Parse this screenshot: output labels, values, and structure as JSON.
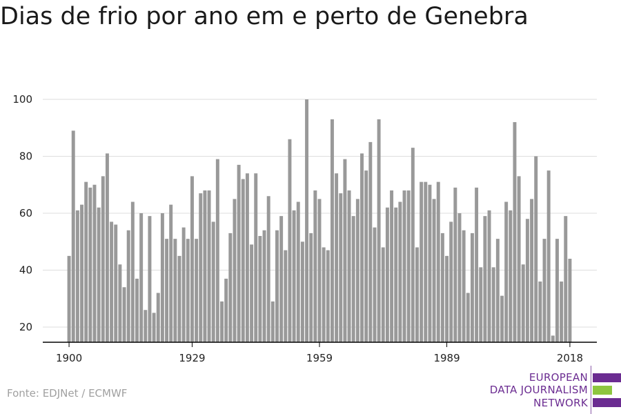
{
  "title": "Dias de frio por ano em e perto de Genebra",
  "source": "Fonte: EDJNet / ECMWF",
  "logo": {
    "line1": "EUROPEAN",
    "line2": "DATA JOURNALISM",
    "line3": "NETWORK"
  },
  "colors": {
    "bar": "#999999",
    "grid": "#dddddd",
    "axis": "#000000",
    "brand_purple": "#6b2c91",
    "brand_green": "#8dc63f"
  },
  "chart_data": {
    "type": "bar",
    "title": "Dias de frio por ano em e perto de Genebra",
    "xlabel": "",
    "ylabel": "",
    "x_start": 1900,
    "x_end": 2018,
    "xticks": [
      1900,
      1929,
      1959,
      1989,
      2018
    ],
    "yticks": [
      20,
      40,
      60,
      80,
      100
    ],
    "ylim": [
      15,
      100
    ],
    "grid": true,
    "categories": [
      1900,
      1901,
      1902,
      1903,
      1904,
      1905,
      1906,
      1907,
      1908,
      1909,
      1910,
      1911,
      1912,
      1913,
      1914,
      1915,
      1916,
      1917,
      1918,
      1919,
      1920,
      1921,
      1922,
      1923,
      1924,
      1925,
      1926,
      1927,
      1928,
      1929,
      1930,
      1931,
      1932,
      1933,
      1934,
      1935,
      1936,
      1937,
      1938,
      1939,
      1940,
      1941,
      1942,
      1943,
      1944,
      1945,
      1946,
      1947,
      1948,
      1949,
      1950,
      1951,
      1952,
      1953,
      1954,
      1955,
      1956,
      1957,
      1958,
      1959,
      1960,
      1961,
      1962,
      1963,
      1964,
      1965,
      1966,
      1967,
      1968,
      1969,
      1970,
      1971,
      1972,
      1973,
      1974,
      1975,
      1976,
      1977,
      1978,
      1979,
      1980,
      1981,
      1982,
      1983,
      1984,
      1985,
      1986,
      1987,
      1988,
      1989,
      1990,
      1991,
      1992,
      1993,
      1994,
      1995,
      1996,
      1997,
      1998,
      1999,
      2000,
      2001,
      2002,
      2003,
      2004,
      2005,
      2006,
      2007,
      2008,
      2009,
      2010,
      2011,
      2012,
      2013,
      2014,
      2015,
      2016,
      2017,
      2018
    ],
    "values": [
      45,
      89,
      61,
      63,
      71,
      69,
      70,
      62,
      73,
      81,
      57,
      56,
      42,
      34,
      54,
      64,
      37,
      60,
      26,
      59,
      25,
      32,
      60,
      51,
      63,
      51,
      45,
      55,
      51,
      73,
      51,
      67,
      68,
      68,
      57,
      79,
      29,
      37,
      53,
      65,
      77,
      72,
      74,
      49,
      74,
      52,
      54,
      66,
      29,
      54,
      59,
      47,
      86,
      61,
      64,
      50,
      100,
      53,
      68,
      65,
      48,
      47,
      93,
      74,
      67,
      79,
      68,
      59,
      65,
      81,
      75,
      85,
      55,
      93,
      48,
      62,
      68,
      62,
      64,
      68,
      68,
      83,
      48,
      71,
      71,
      70,
      65,
      71,
      53,
      45,
      57,
      69,
      60,
      54,
      32,
      53,
      69,
      41,
      59,
      61,
      41,
      51,
      31,
      64,
      61,
      92,
      73,
      42,
      58,
      65,
      80,
      36,
      51,
      75,
      17,
      51,
      36,
      59,
      44
    ]
  }
}
